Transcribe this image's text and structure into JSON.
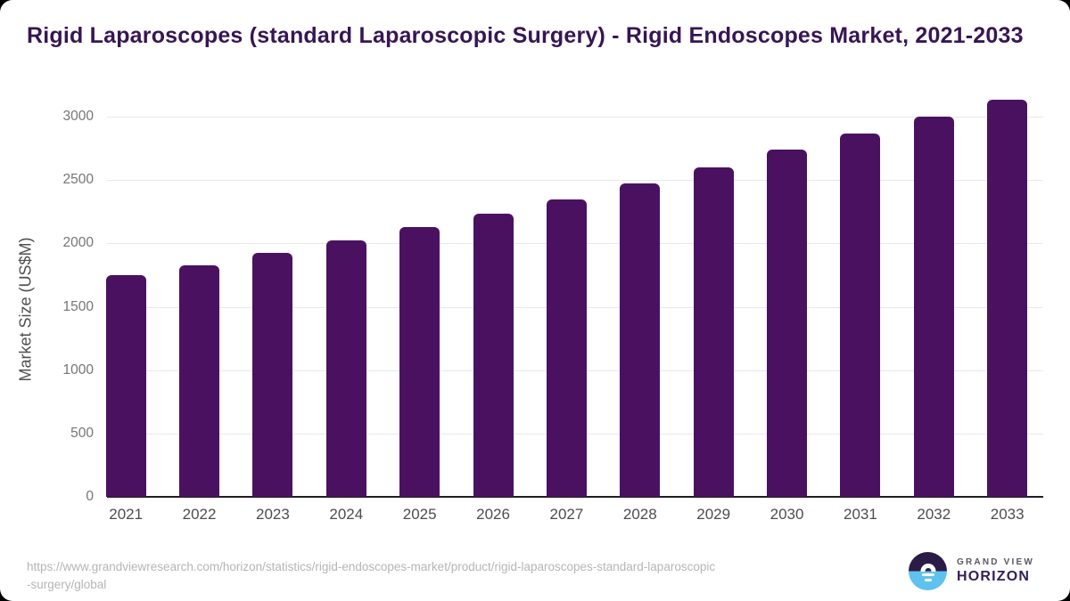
{
  "title": "Rigid Laparoscopes (standard Laparoscopic Surgery) - Rigid Endoscopes Market, 2021-2033",
  "chart_data": {
    "type": "bar",
    "title": "Rigid Laparoscopes (standard Laparoscopic Surgery) - Rigid Endoscopes Market, 2021-2033",
    "xlabel": "",
    "ylabel": "Market Size (US$M)",
    "categories": [
      "2021",
      "2022",
      "2023",
      "2024",
      "2025",
      "2026",
      "2027",
      "2028",
      "2029",
      "2030",
      "2031",
      "2032",
      "2033"
    ],
    "values": [
      1750,
      1825,
      1925,
      2025,
      2130,
      2235,
      2350,
      2470,
      2600,
      2740,
      2865,
      3000,
      3135
    ],
    "ylim": [
      0,
      3200
    ],
    "y_ticks": [
      0,
      500,
      1000,
      1500,
      2000,
      2500,
      3000
    ],
    "grid": "horizontal",
    "legend": "none",
    "bar_color": "#4a1161"
  },
  "footer": {
    "url_lines": [
      "https://www.grandviewresearch.com/horizon/statistics/rigid-endoscopes-market/product/rigid-laparoscopes-standard-laparoscopic",
      "-surgery/global"
    ]
  },
  "logo": {
    "top_text": "GRAND VIEW",
    "bottom_text": "HORIZON",
    "mark_top_color": "#2d1b47",
    "mark_bottom_color": "#5fc2ee"
  }
}
